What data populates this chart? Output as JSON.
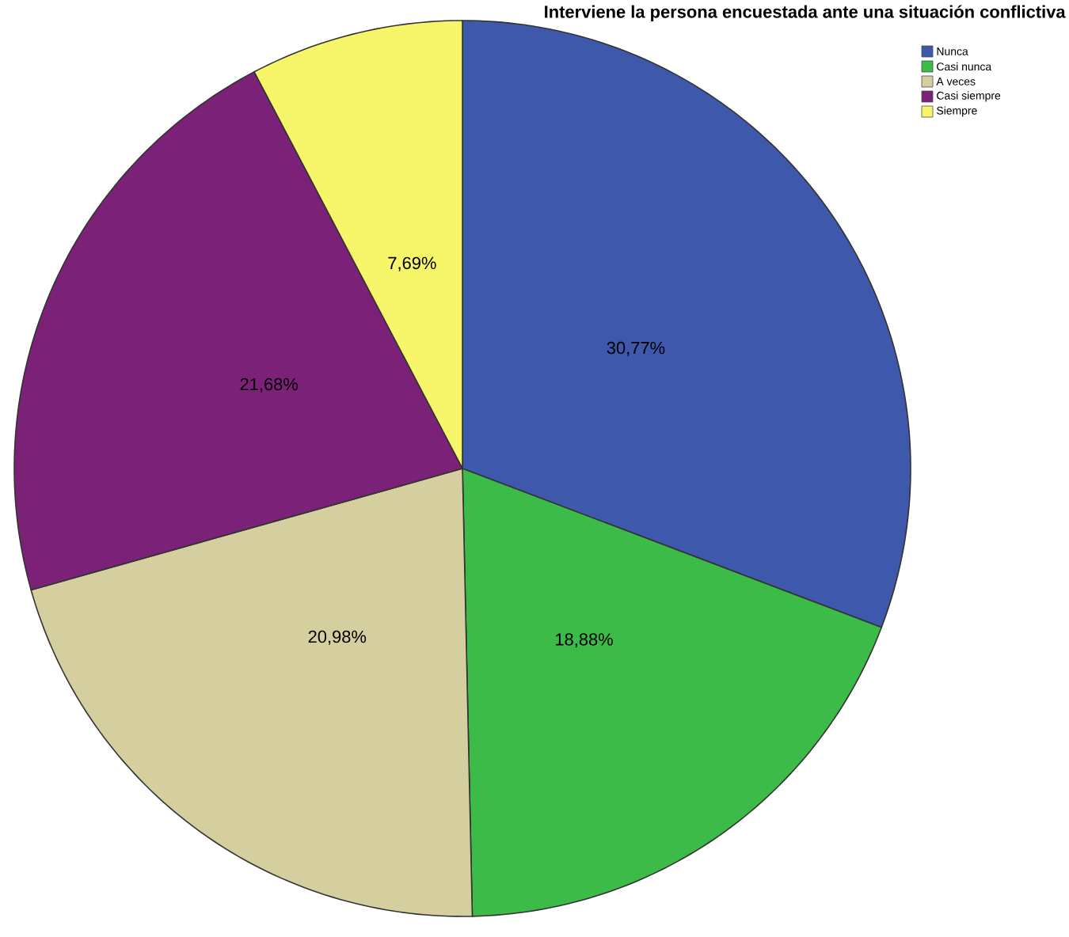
{
  "chart_data": {
    "type": "pie",
    "title": "Interviene la persona encuestada ante una situación conflictiva",
    "categories": [
      "Nunca",
      "Casi nunca",
      "A veces",
      "Casi siempre",
      "Siempre"
    ],
    "values": [
      30.77,
      18.88,
      20.98,
      21.68,
      7.69
    ],
    "colors": [
      "#3e58ac",
      "#3dbb48",
      "#d5cfa0",
      "#7b2177",
      "#f7f56a"
    ],
    "value_labels": [
      "30,77%",
      "18,88%",
      "20,98%",
      "21,68%",
      "7,69%"
    ],
    "legend": "top right"
  }
}
